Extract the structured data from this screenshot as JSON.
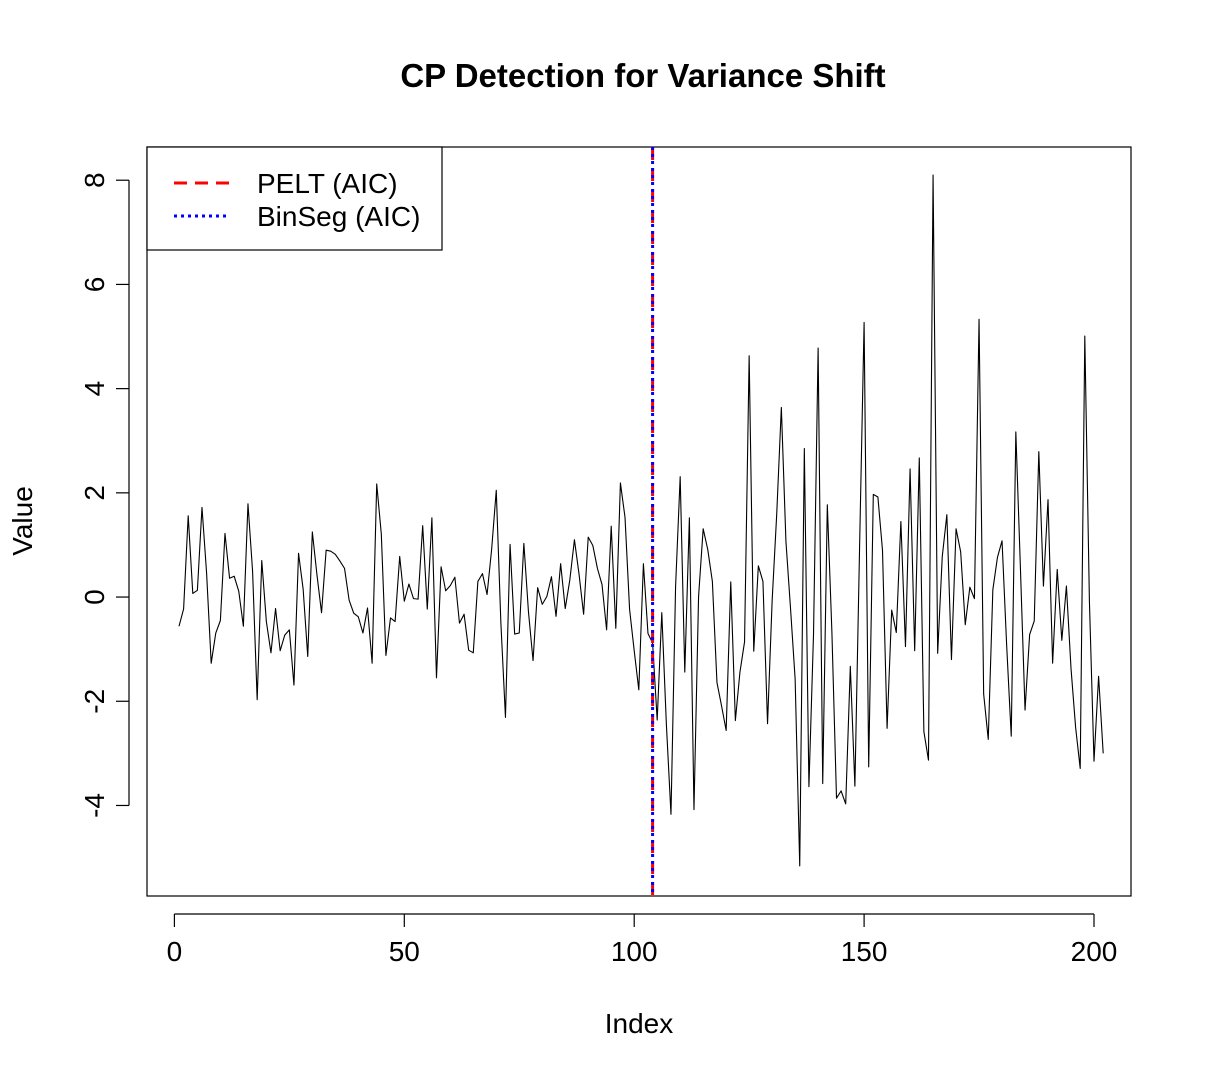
{
  "chart_data": {
    "type": "line",
    "title": "CP Detection for Variance Shift",
    "xlabel": "Index",
    "ylabel": "Value",
    "xlim": [
      1,
      200
    ],
    "ylim": [
      -5.2,
      8.1
    ],
    "x_ticks": [
      0,
      50,
      100,
      150,
      200
    ],
    "x_tick_labels": [
      "0",
      "50",
      "100",
      "150",
      "200"
    ],
    "y_ticks": [
      -4,
      -2,
      0,
      2,
      4,
      6,
      8
    ],
    "y_tick_labels": [
      "-4",
      "-2",
      "0",
      "2",
      "4",
      "6",
      "8"
    ],
    "grid": false,
    "legend_position": "top-left",
    "series": [
      {
        "color": "#000000",
        "x_start": 1,
        "values": [
          -0.56,
          -0.23,
          1.56,
          0.07,
          0.13,
          1.72,
          0.46,
          -1.27,
          -0.69,
          -0.45,
          1.22,
          0.36,
          0.4,
          0.11,
          -0.56,
          1.79,
          0.5,
          -1.97,
          0.7,
          -0.47,
          -1.07,
          -0.22,
          -1.03,
          -0.73,
          -0.63,
          -1.69,
          0.84,
          0.15,
          -1.14,
          1.25,
          0.43,
          -0.3,
          0.9,
          0.88,
          0.82,
          0.69,
          0.55,
          -0.06,
          -0.31,
          -0.38,
          -0.69,
          -0.21,
          -1.27,
          2.17,
          1.21,
          -1.12,
          -0.4,
          -0.47,
          0.78,
          -0.08,
          0.25,
          -0.03,
          -0.04,
          1.37,
          -0.23,
          1.52,
          -1.55,
          0.58,
          0.12,
          0.22,
          0.38,
          -0.5,
          -0.33,
          -1.02,
          -1.07,
          0.3,
          0.45,
          0.05,
          0.92,
          2.05,
          -0.49,
          -2.31,
          1.01,
          -0.71,
          -0.69,
          1.03,
          -0.28,
          -1.22,
          0.18,
          -0.14,
          0.01,
          0.39,
          -0.37,
          0.64,
          -0.22,
          0.33,
          1.1,
          0.44,
          -0.33,
          1.15,
          0.99,
          0.55,
          0.24,
          -0.63,
          1.36,
          -0.6,
          2.19,
          1.53,
          -0.24,
          -1.03,
          -1.78,
          0.64,
          -0.7,
          -0.88,
          -2.36,
          -0.3,
          -2.45,
          -4.17,
          0.2,
          2.31,
          -1.44,
          1.52,
          -4.08,
          0.01,
          1.31,
          0.91,
          0.3,
          -1.64,
          -2.09,
          -2.56,
          0.29,
          -2.37,
          -1.44,
          -0.86,
          4.63,
          -1.04,
          0.6,
          0.3,
          -2.43,
          -0.07,
          1.6,
          3.64,
          1.07,
          -0.22,
          -1.57,
          -5.16,
          2.85,
          -3.64,
          -0.71,
          4.78,
          -3.58,
          1.77,
          -0.68,
          -3.86,
          -3.72,
          -3.97,
          -1.33,
          -3.63,
          0.88,
          5.27,
          -3.26,
          1.97,
          1.92,
          0.9,
          -2.52,
          -0.25,
          -0.68,
          1.45,
          -0.95,
          2.46,
          -1.03,
          2.67,
          -2.58,
          -3.13,
          8.1,
          -1.08,
          0.78,
          1.58,
          -1.2,
          1.31,
          0.87,
          -0.53,
          0.19,
          -0.03,
          5.33,
          -1.86,
          -2.73,
          0.14,
          0.76,
          1.08,
          -0.92,
          -2.67,
          3.17,
          0.55,
          -2.17,
          -0.72,
          -0.46,
          2.79,
          0.21,
          1.87,
          -1.27,
          0.53,
          -0.83,
          0.21,
          -1.37,
          -2.5,
          -3.29,
          5.01,
          -0.07,
          -3.15,
          -1.52,
          -3.0
        ]
      }
    ],
    "change_points": [
      {
        "name": "PELT (AIC)",
        "x": 104,
        "color": "#ff0000",
        "style": "dashed"
      },
      {
        "name": "BinSeg (AIC)",
        "x": 104,
        "color": "#0000ff",
        "style": "dotted"
      }
    ]
  }
}
